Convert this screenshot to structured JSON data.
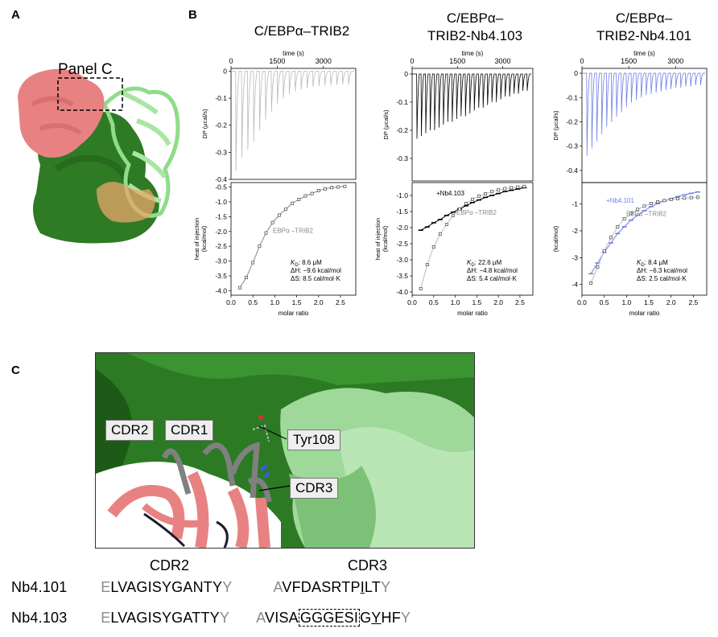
{
  "panel_labels": {
    "a": "A",
    "b": "B",
    "c": "C"
  },
  "panel_a": {
    "inset_label": "Panel C"
  },
  "panel_b": {
    "time_axis_label": "time (s)",
    "dp_axis_label": "DP (μcal/s)",
    "heat_axis_label_1": "heat of injection",
    "heat_axis_label_2": "(kcal/mol)",
    "heat_axis_label_short": "(kcal/mol)",
    "molar_ratio_label": "molar ratio",
    "columns": [
      {
        "title_line1": "C/EBPα–TRIB2",
        "title_line2": "",
        "trace_color": "#b9b9b9",
        "series_label": "EBPα –TRIB2",
        "series_label_color": "#888888",
        "kd": "8.6 μM",
        "dh": "−9.6 kcal/mol",
        "ds": "8.5 cal/mol·K"
      },
      {
        "title_line1": "C/EBPα–",
        "title_line2": "TRIB2-Nb4.103",
        "trace_color": "#000000",
        "series_label": "+Nb4.103",
        "series_label_color": "#000000",
        "ref_label": "EBPα –TRIB2",
        "kd": "22.6 μM",
        "dh": "−4.8 kcal/mol",
        "ds": "5.4 cal/mol·K"
      },
      {
        "title_line1": "C/EBPα–",
        "title_line2": "TRIB2-Nb4.101",
        "trace_color": "#6f7fe6",
        "series_label": "+Nb4.101",
        "series_label_color": "#6f7fe6",
        "ref_label": "EBPα –TRIB2",
        "kd": "8.4 μM",
        "dh": "−6.3 kcal/mol",
        "ds": "2.5 cal/mol·K"
      }
    ],
    "kd_prefix": "K",
    "kd_sub": "D",
    "dh_prefix": "ΔH: ",
    "ds_prefix": "ΔS: "
  },
  "chart_data": [
    {
      "type": "line",
      "title": "C/EBPα–TRIB2",
      "xlabel": "time (s)",
      "ylabel": "DP (μcal/s)",
      "x_ticks": [
        0,
        1500,
        3000
      ],
      "y_ticks": [
        0,
        -0.1,
        -0.2,
        -0.3,
        -0.4
      ],
      "xlim": [
        0,
        4050
      ],
      "ylim": [
        -0.4,
        0.01
      ],
      "injections": 20,
      "peak_minima": [
        -0.37,
        -0.32,
        -0.29,
        -0.26,
        -0.22,
        -0.18,
        -0.15,
        -0.12,
        -0.1,
        -0.085,
        -0.075,
        -0.068,
        -0.062,
        -0.058,
        -0.055,
        -0.053,
        -0.052,
        -0.051,
        -0.05,
        -0.05
      ]
    },
    {
      "type": "scatter",
      "xlabel": "molar ratio",
      "ylabel": "heat of injection (kcal/mol)",
      "x_ticks": [
        0,
        0.5,
        1.0,
        1.5,
        2.0,
        2.5
      ],
      "y_ticks": [
        -4.0,
        -3.5,
        -3.0,
        -2.5,
        -2.0,
        -1.5,
        -1.0,
        -0.5
      ],
      "xlim": [
        0,
        2.85
      ],
      "ylim": [
        -4.15,
        -0.35
      ],
      "series": [
        {
          "name": "EBPα –TRIB2",
          "x": [
            0.2,
            0.35,
            0.5,
            0.65,
            0.8,
            0.95,
            1.1,
            1.25,
            1.4,
            1.55,
            1.7,
            1.85,
            2.0,
            2.15,
            2.3,
            2.45,
            2.6
          ],
          "y": [
            -3.9,
            -3.55,
            -3.05,
            -2.5,
            -2.05,
            -1.7,
            -1.45,
            -1.25,
            -1.05,
            -0.92,
            -0.8,
            -0.72,
            -0.62,
            -0.56,
            -0.52,
            -0.5,
            -0.48
          ]
        }
      ],
      "annotations": [
        "KD: 8.6 μM",
        "ΔH: −9.6 kcal/mol",
        "ΔS: 8.5 cal/mol·K"
      ]
    },
    {
      "type": "line",
      "title": "C/EBPα–TRIB2-Nb4.103",
      "xlabel": "time (s)",
      "ylabel": "DP (μcal/s)",
      "x_ticks": [
        0,
        1500,
        3000
      ],
      "y_ticks": [
        0,
        -0.1,
        -0.2,
        -0.3
      ],
      "xlim": [
        0,
        4000
      ],
      "ylim": [
        -0.38,
        0.02
      ],
      "injections": 26,
      "peak_minima": [
        -0.23,
        -0.22,
        -0.21,
        -0.2,
        -0.2,
        -0.19,
        -0.18,
        -0.17,
        -0.17,
        -0.16,
        -0.15,
        -0.15,
        -0.14,
        -0.13,
        -0.12,
        -0.12,
        -0.11,
        -0.1,
        -0.1,
        -0.09,
        -0.08,
        -0.08,
        -0.07,
        -0.07,
        -0.06,
        -0.06
      ]
    },
    {
      "type": "scatter",
      "xlabel": "molar ratio",
      "ylabel": "heat of injection (kcal/mol)",
      "x_ticks": [
        0,
        0.5,
        1.0,
        1.5,
        2.0,
        2.5
      ],
      "y_ticks": [
        -4.0,
        -3.5,
        -3.0,
        -2.5,
        -2.0,
        -1.5,
        -1.0
      ],
      "xlim": [
        0,
        2.8
      ],
      "ylim": [
        -4.1,
        -0.6
      ],
      "series": [
        {
          "name": "+Nb4.103",
          "x": [
            0.2,
            0.35,
            0.5,
            0.65,
            0.8,
            0.95,
            1.1,
            1.25,
            1.4,
            1.55,
            1.7,
            1.85,
            2.0,
            2.15,
            2.3,
            2.45,
            2.6
          ],
          "y": [
            -2.08,
            -1.98,
            -1.85,
            -1.75,
            -1.62,
            -1.52,
            -1.42,
            -1.32,
            -1.22,
            -1.14,
            -1.06,
            -1.0,
            -0.94,
            -0.88,
            -0.84,
            -0.8,
            -0.76
          ]
        },
        {
          "name": "EBPα –TRIB2",
          "x": [
            0.2,
            0.35,
            0.5,
            0.65,
            0.8,
            0.95,
            1.1,
            1.25,
            1.4,
            1.55,
            1.7,
            1.85,
            2.0,
            2.15,
            2.3,
            2.45,
            2.6
          ],
          "y": [
            -3.9,
            -3.15,
            -2.6,
            -2.2,
            -1.9,
            -1.62,
            -1.42,
            -1.25,
            -1.12,
            -1.02,
            -0.95,
            -0.88,
            -0.83,
            -0.79,
            -0.76,
            -0.74,
            -0.72
          ]
        }
      ],
      "annotations": [
        "KD: 22.6 μM",
        "ΔH: −4.8 kcal/mol",
        "ΔS: 5.4 cal/mol·K"
      ]
    },
    {
      "type": "line",
      "title": "C/EBPα–TRIB2-Nb4.101",
      "xlabel": "time (s)",
      "ylabel": "DP (μcal/s)",
      "x_ticks": [
        0,
        1500,
        3000
      ],
      "y_ticks": [
        0,
        -0.1,
        -0.2,
        -0.3,
        -0.4
      ],
      "xlim": [
        0,
        4000
      ],
      "ylim": [
        -0.45,
        0.02
      ],
      "injections": 24,
      "peak_minima": [
        -0.34,
        -0.31,
        -0.28,
        -0.25,
        -0.22,
        -0.2,
        -0.18,
        -0.16,
        -0.14,
        -0.12,
        -0.11,
        -0.1,
        -0.09,
        -0.085,
        -0.08,
        -0.075,
        -0.07,
        -0.065,
        -0.06,
        -0.06,
        -0.055,
        -0.055,
        -0.05,
        -0.05
      ]
    },
    {
      "type": "scatter",
      "xlabel": "molar ratio",
      "ylabel": "(kcal/mol)",
      "x_ticks": [
        0,
        0.5,
        1.0,
        1.5,
        2.0,
        2.5
      ],
      "y_ticks": [
        -4,
        -3,
        -2,
        -1
      ],
      "xlim": [
        0,
        2.8
      ],
      "ylim": [
        -4.4,
        -0.2
      ],
      "series": [
        {
          "name": "+Nb4.101",
          "x": [
            0.2,
            0.35,
            0.5,
            0.65,
            0.8,
            0.95,
            1.1,
            1.25,
            1.4,
            1.55,
            1.7,
            1.85,
            2.0,
            2.15,
            2.3,
            2.45,
            2.6
          ],
          "y": [
            -3.6,
            -3.2,
            -2.8,
            -2.45,
            -2.1,
            -1.85,
            -1.6,
            -1.42,
            -1.25,
            -1.1,
            -0.98,
            -0.88,
            -0.8,
            -0.72,
            -0.66,
            -0.6,
            -0.55
          ]
        },
        {
          "name": "EBPα –TRIB2",
          "x": [
            0.2,
            0.35,
            0.5,
            0.65,
            0.8,
            0.95,
            1.1,
            1.25,
            1.4,
            1.55,
            1.7,
            1.85,
            2.0,
            2.15,
            2.3,
            2.45,
            2.6
          ],
          "y": [
            -3.95,
            -3.35,
            -2.75,
            -2.25,
            -1.85,
            -1.55,
            -1.35,
            -1.2,
            -1.08,
            -0.98,
            -0.92,
            -0.87,
            -0.83,
            -0.8,
            -0.78,
            -0.76,
            -0.75
          ]
        }
      ],
      "annotations": [
        "KD: 8.4 μM",
        "ΔH: −6.3 kcal/mol",
        "ΔS: 2.5 cal/mol·K"
      ]
    }
  ],
  "panel_c": {
    "callouts": {
      "cdr2": "CDR2",
      "cdr1": "CDR1",
      "tyr": "Tyr108",
      "cdr3": "CDR3"
    },
    "headers": {
      "cdr2": "CDR2",
      "cdr3": "CDR3"
    },
    "rows": [
      {
        "name": "Nb4.101",
        "cdr2_first": "E",
        "cdr2_mid": "LVAGISYGANTY",
        "cdr2_last": "Y",
        "cdr3_first": "A",
        "cdr3_a": "VFDASRTP",
        "cdr3_ul": "I",
        "cdr3_b": "LT",
        "cdr3_last": "Y"
      },
      {
        "name": "Nb4.103",
        "cdr2_first": "E",
        "cdr2_mid": "LVAGISYGATTY",
        "cdr2_last": "Y",
        "cdr3_first": "A",
        "cdr3_a": "VISA",
        "cdr3_box": "GGGESI",
        "cdr3_b": "G",
        "cdr3_ul": "Y",
        "cdr3_c": "HF",
        "cdr3_last": "Y"
      }
    ]
  }
}
